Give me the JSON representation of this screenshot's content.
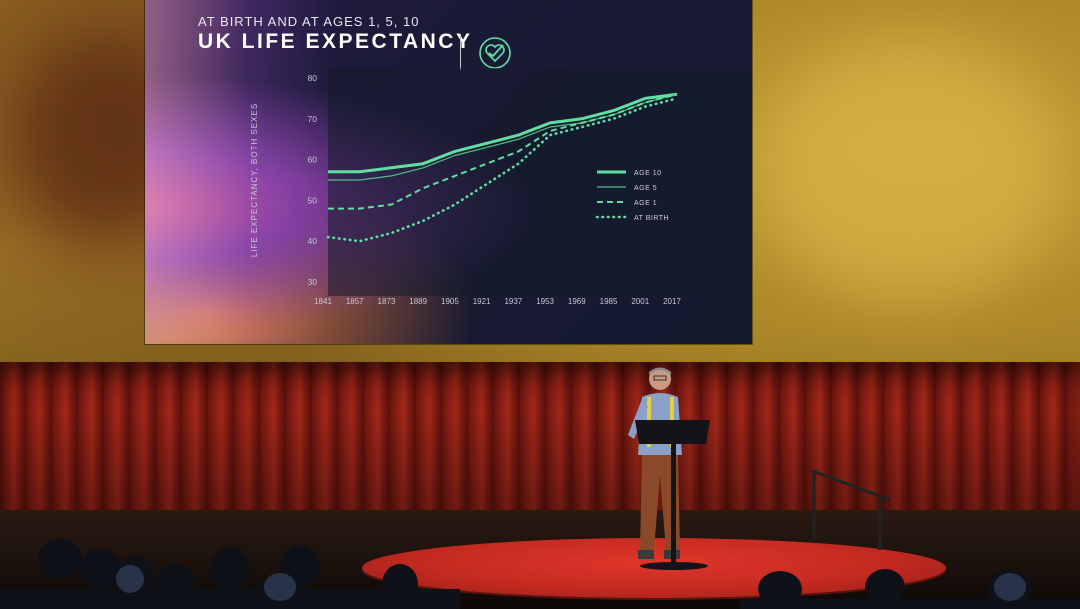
{
  "slide": {
    "subtitle": "AT BIRTH AND AT AGES 1, 5, 10",
    "title": "UK LIFE EXPECTANCY",
    "logo_icon": "heart-check-icon"
  },
  "chart_data": {
    "type": "line",
    "title": "UK LIFE EXPECTANCY",
    "subtitle": "AT BIRTH AND AT AGES 1, 5, 10",
    "xlabel": "",
    "ylabel": "LIFE EXPECTANCY, BOTH SEXES",
    "ylim": [
      30,
      80
    ],
    "yticks": [
      "80",
      "70",
      "60",
      "50",
      "40",
      "30"
    ],
    "xticks": [
      "1841",
      "1857",
      "1873",
      "1889",
      "1905",
      "1921",
      "1937",
      "1953",
      "1969",
      "1985",
      "2001",
      "2017"
    ],
    "x": [
      1841,
      1857,
      1873,
      1889,
      1905,
      1921,
      1937,
      1953,
      1969,
      1985,
      2001,
      2017
    ],
    "legend_position": "right",
    "series": [
      {
        "name": "AGE 10",
        "style": "thick",
        "color": "#5fe0a0",
        "values": [
          57,
          57,
          58,
          59,
          62,
          64,
          66,
          69,
          70,
          72,
          75,
          76
        ]
      },
      {
        "name": "AGE 5",
        "style": "thin",
        "color": "#4fbf8a",
        "values": [
          55,
          55,
          56,
          58,
          61,
          63,
          65,
          68,
          69,
          71,
          74,
          76
        ]
      },
      {
        "name": "AGE 1",
        "style": "dashed",
        "color": "#5fe0a0",
        "values": [
          48,
          48,
          49,
          53,
          56,
          59,
          62,
          67,
          69,
          71,
          74,
          76
        ]
      },
      {
        "name": "AT BIRTH",
        "style": "dotted",
        "color": "#5fe0a0",
        "values": [
          41,
          40,
          42,
          45,
          49,
          54,
          59,
          66,
          68,
          70,
          73,
          75
        ]
      }
    ]
  }
}
